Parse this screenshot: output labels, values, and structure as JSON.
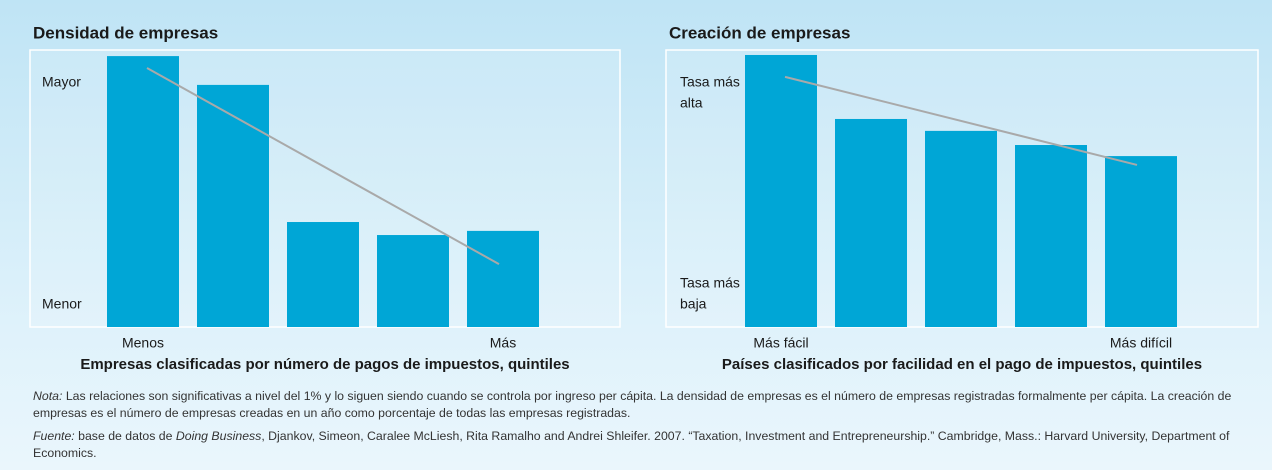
{
  "chart_data": [
    {
      "type": "bar",
      "title": "Densidad de empresas",
      "top_label": [
        "Mayor"
      ],
      "bottom_label": [
        "Menor"
      ],
      "categories": [
        "Menos",
        null,
        null,
        null,
        "Más"
      ],
      "values": [
        97.8,
        87.4,
        37.9,
        33.2,
        34.7
      ],
      "trend": {
        "start": 93.5,
        "end": 22.7
      },
      "xlabel": "Empresas clasificadas por número de pagos de impuestos, quintiles",
      "color": "#00a6d6",
      "trend_color": "#a9a9a9",
      "ylim": [
        0,
        100
      ]
    },
    {
      "type": "bar",
      "title": "Creación de empresas",
      "top_label": [
        "Tasa más",
        "alta"
      ],
      "bottom_label": [
        "Tasa más",
        "baja"
      ],
      "categories": [
        "Más fácil",
        null,
        null,
        null,
        "Más difícil"
      ],
      "values": [
        98.2,
        75.1,
        70.8,
        65.7,
        61.7
      ],
      "trend": {
        "start": 90.3,
        "end": 58.5
      },
      "xlabel": "Países clasificados por facilidad en el pago de impuestos, quintiles",
      "color": "#00a6d6",
      "trend_color": "#a9a9a9",
      "ylim": [
        0,
        100
      ]
    }
  ],
  "note": {
    "label": "Nota:",
    "text": " Las relaciones son significativas a nivel del 1% y lo siguen siendo cuando se controla por ingreso per cápita. La densidad de empresas es el número de empresas registradas formalmente per cápita. La creación de empresas es el número de empresas creadas en un año como porcentaje de todas las empresas registradas."
  },
  "source": {
    "label": "Fuente:",
    "text1": " base de datos de ",
    "italic": "Doing Business",
    "text2": ", Djankov, Simeon, Caralee McLiesh, Rita Ramalho and Andrei Shleifer. 2007. “Taxation, Investment and Entrepreneurship.” Cambridge, Mass.: Harvard University, Department of Economics."
  }
}
